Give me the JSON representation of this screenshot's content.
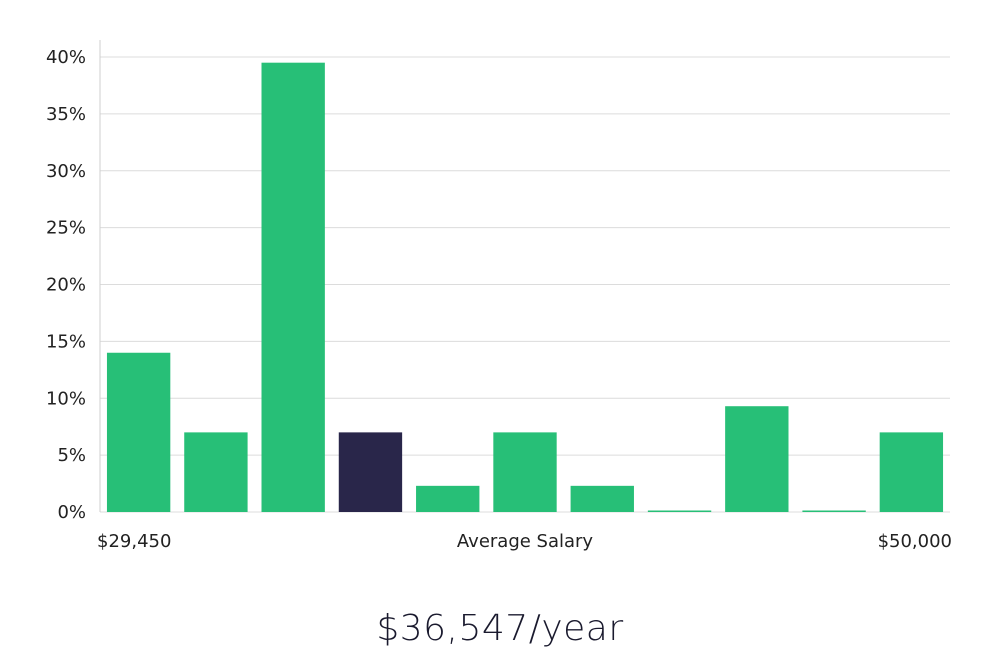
{
  "chart_data": {
    "type": "bar",
    "title": "",
    "xlabel": "Average Salary",
    "ylabel": "",
    "x_range_labels": {
      "min": "$29,450",
      "max": "$50,000"
    },
    "y_ticks": [
      "0%",
      "5%",
      "10%",
      "15%",
      "20%",
      "25%",
      "30%",
      "35%",
      "40%"
    ],
    "ylim": [
      0,
      40
    ],
    "grid": true,
    "values": [
      14.0,
      7.0,
      39.5,
      7.0,
      2.3,
      7.0,
      2.3,
      0.1,
      9.3,
      0.1,
      7.0
    ],
    "highlight_index": 3,
    "colors": {
      "bar": "#27bf77",
      "highlight": "#29264a",
      "grid": "#dcdcdc"
    }
  },
  "summary": {
    "average_salary": "$36,547/year"
  }
}
